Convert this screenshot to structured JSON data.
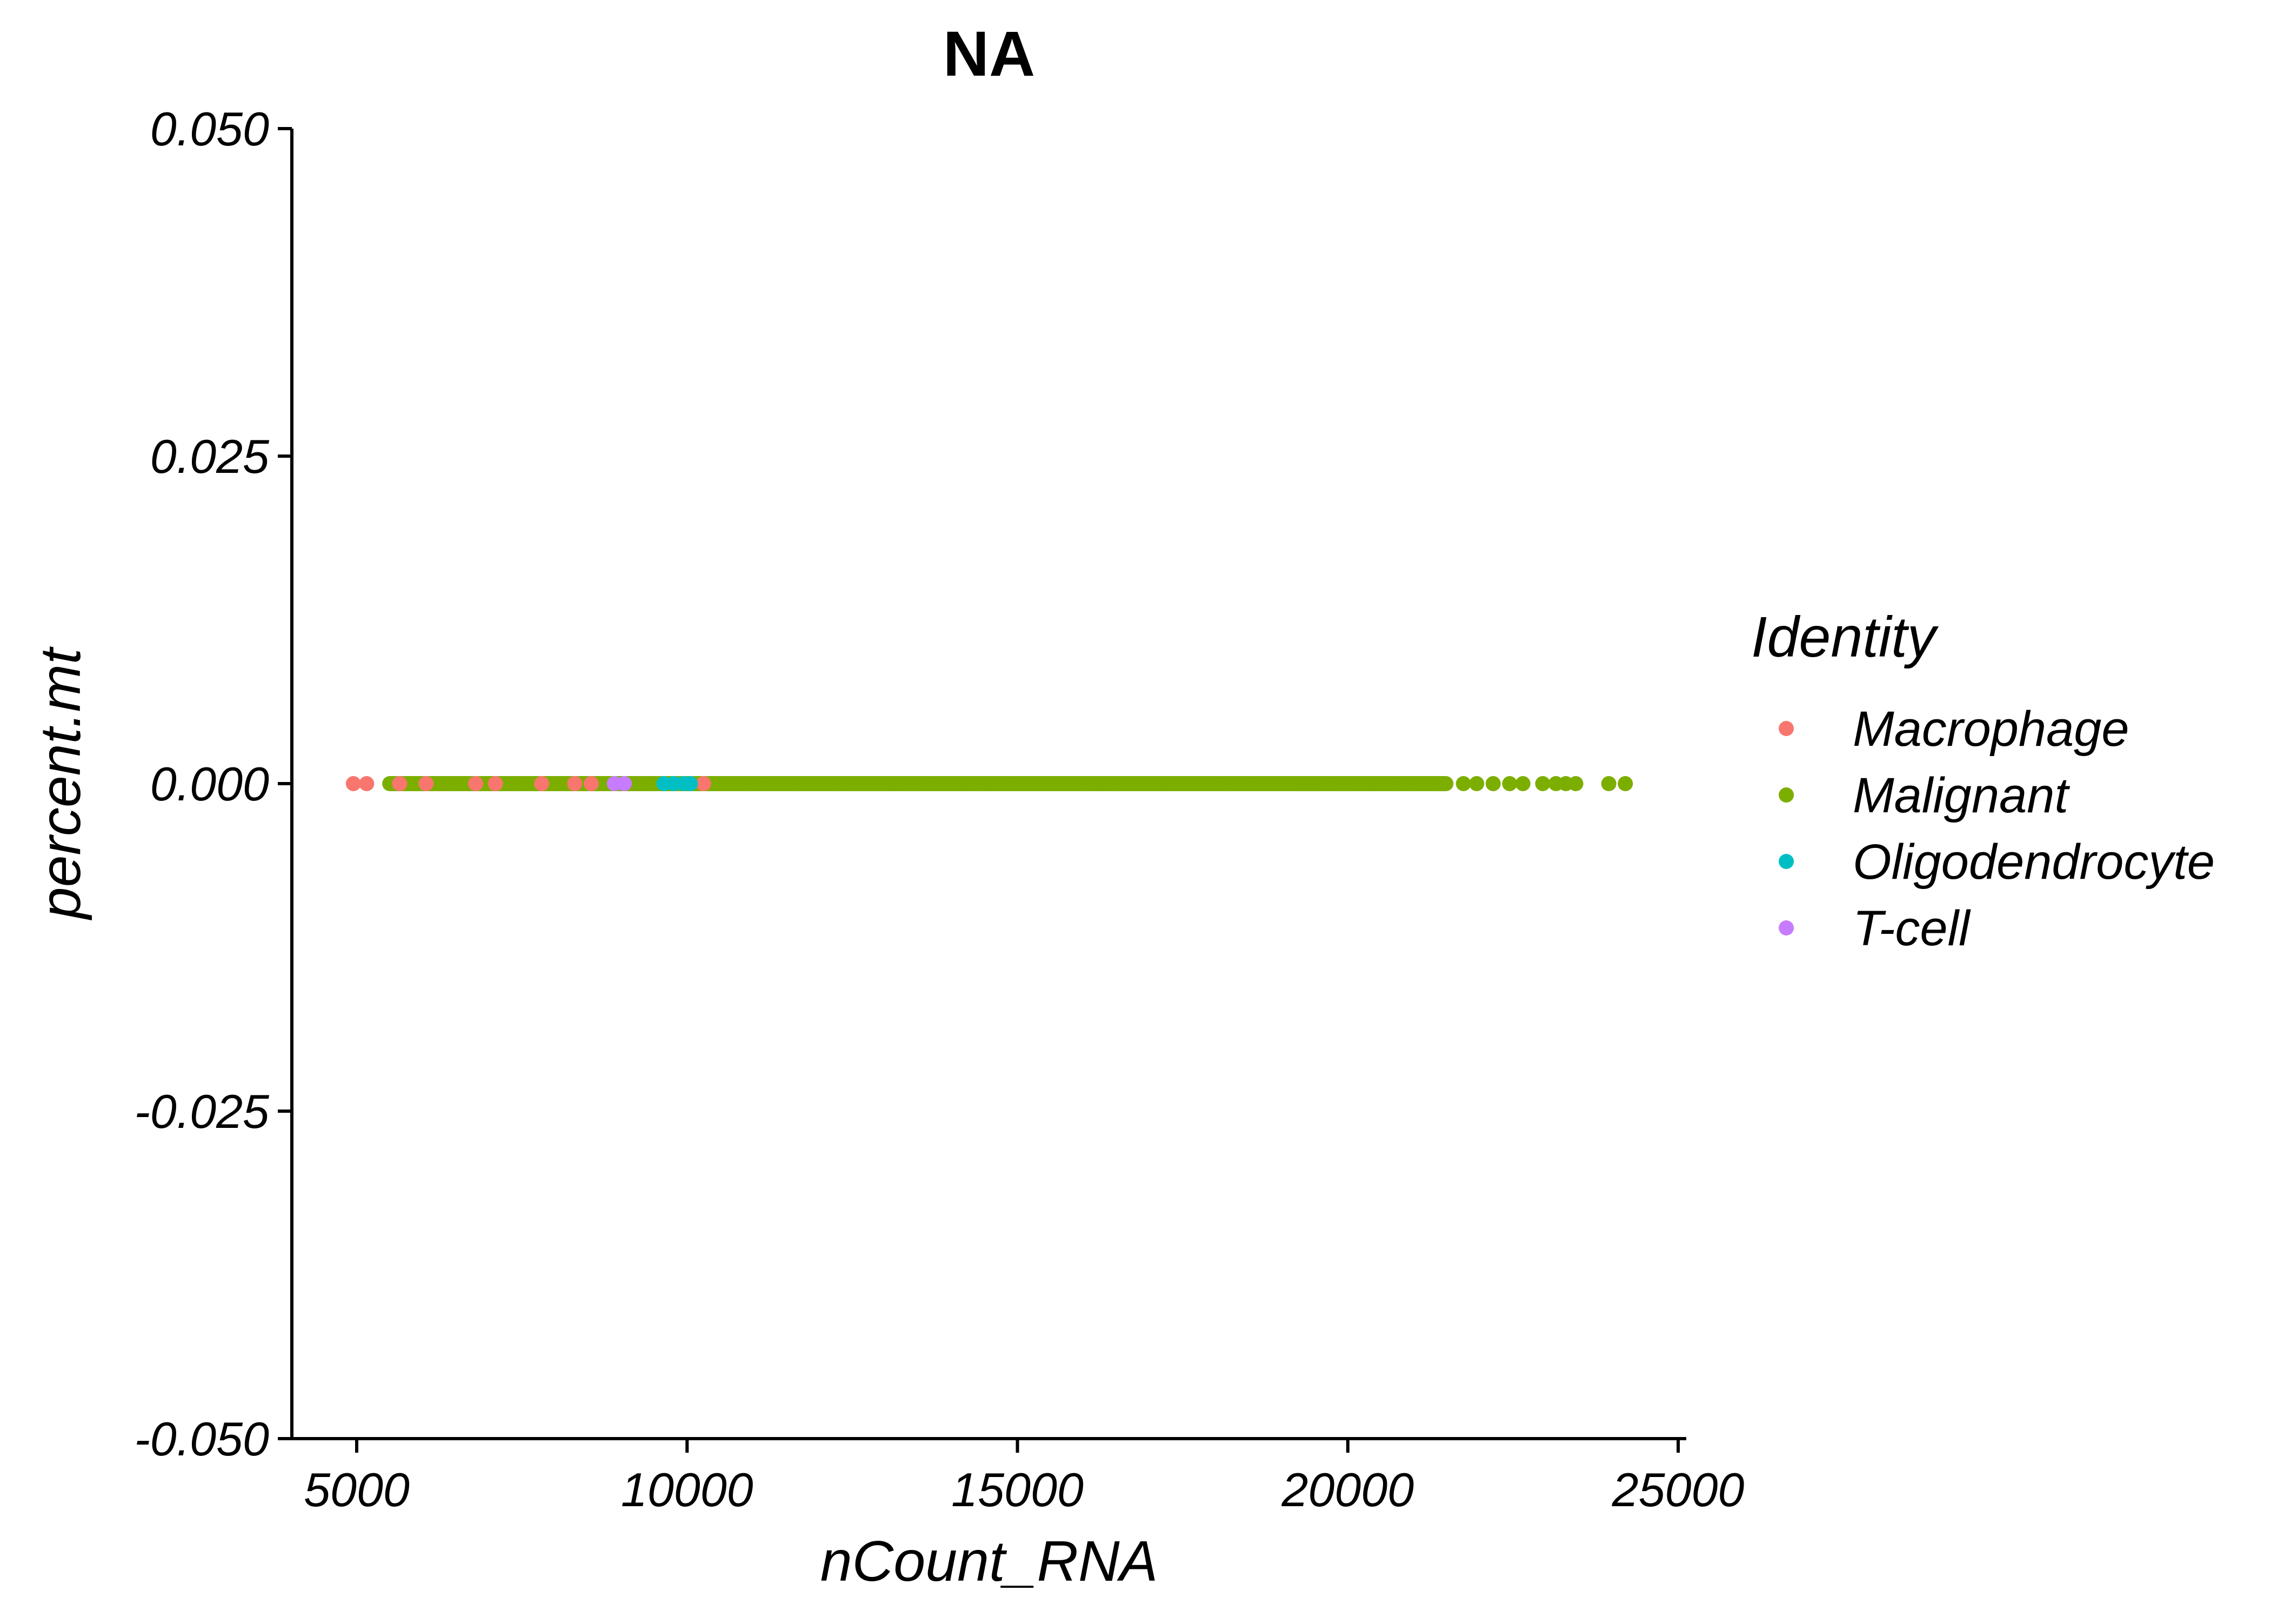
{
  "chart_data": {
    "type": "scatter",
    "title": "NA",
    "xlabel": "nCount_RNA",
    "ylabel": "percent.mt",
    "xlim": [
      4000,
      25200
    ],
    "ylim": [
      -0.05,
      0.05
    ],
    "x_ticks": [
      5000,
      10000,
      15000,
      20000,
      25000
    ],
    "x_tick_labels": [
      "5000",
      "10000",
      "15000",
      "20000",
      "25000"
    ],
    "y_ticks": [
      -0.05,
      -0.025,
      0,
      0.025,
      0.05
    ],
    "y_tick_labels": [
      "-0.050",
      "-0.025",
      "0.000",
      "0.025",
      "0.050"
    ],
    "grid": false,
    "legend": {
      "title": "Identity",
      "position": "right"
    },
    "series": [
      {
        "name": "Macrophage",
        "color": "#F8766D",
        "points": [
          [
            4950,
            0
          ],
          [
            5150,
            0
          ],
          [
            5650,
            0
          ],
          [
            6050,
            0
          ],
          [
            6800,
            0
          ],
          [
            7100,
            0
          ],
          [
            7800,
            0
          ],
          [
            8300,
            0
          ],
          [
            8550,
            0
          ],
          [
            10250,
            0
          ]
        ]
      },
      {
        "name": "Malignant",
        "color": "#7CAE00",
        "range": [
          5500,
          21500
        ],
        "points": [
          [
            21750,
            0
          ],
          [
            21950,
            0
          ],
          [
            22200,
            0
          ],
          [
            22450,
            0
          ],
          [
            22650,
            0
          ],
          [
            22950,
            0
          ],
          [
            23150,
            0
          ],
          [
            23300,
            0
          ],
          [
            23450,
            0
          ],
          [
            23950,
            0
          ],
          [
            24200,
            0
          ]
        ]
      },
      {
        "name": "Oligodendrocyte",
        "color": "#00BFC4",
        "points": [
          [
            9650,
            0
          ],
          [
            9800,
            0
          ],
          [
            9950,
            0
          ],
          [
            10050,
            0
          ]
        ]
      },
      {
        "name": "T-cell",
        "color": "#C77CFF",
        "points": [
          [
            8900,
            0
          ],
          [
            9050,
            0
          ]
        ]
      }
    ]
  }
}
